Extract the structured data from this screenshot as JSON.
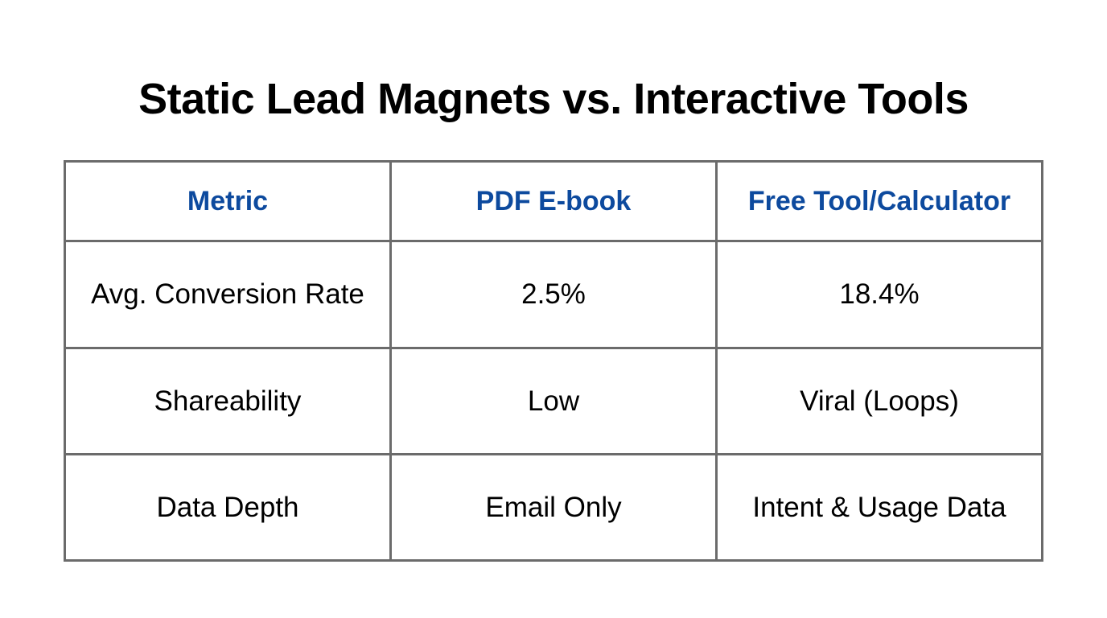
{
  "title": "Static Lead Magnets vs. Interactive Tools",
  "table": {
    "headers": [
      "Metric",
      "PDF E-book",
      "Free Tool/Calculator"
    ],
    "rows": [
      [
        "Avg. Conversion Rate",
        "2.5%",
        "18.4%"
      ],
      [
        "Shareability",
        "Low",
        "Viral (Loops)"
      ],
      [
        "Data Depth",
        "Email Only",
        "Intent & Usage Data"
      ]
    ]
  },
  "colors": {
    "header_text": "#0d4a9e",
    "border": "#6b6b6b"
  }
}
